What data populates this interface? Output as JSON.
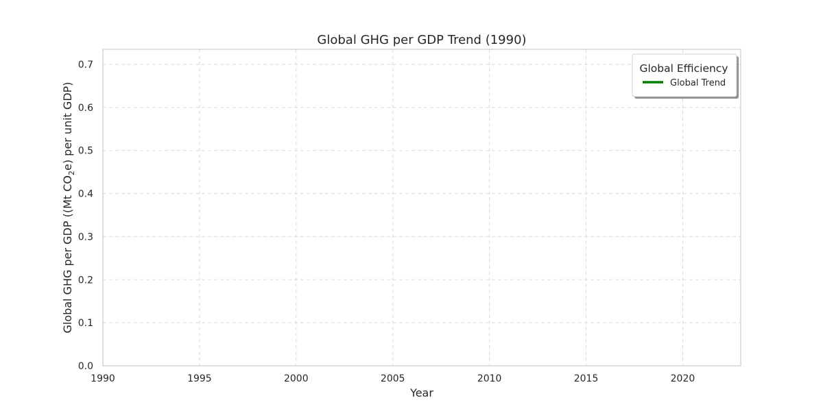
{
  "chart_data": {
    "type": "line",
    "title": "Global GHG per GDP Trend (1990)",
    "xlabel": "Year",
    "ylabel_parts": {
      "before": "Global GHG per GDP ((Mt CO",
      "subscript": "2",
      "after": "e) per unit GDP)"
    },
    "xlim": [
      1990,
      2023
    ],
    "ylim": [
      0,
      0.735
    ],
    "xticks": [
      1990,
      1995,
      2000,
      2005,
      2010,
      2015,
      2020
    ],
    "xtick_labels": [
      "1990",
      "1995",
      "2000",
      "2005",
      "2010",
      "2015",
      "2020"
    ],
    "yticks": [
      0,
      0.1,
      0.2,
      0.3,
      0.4,
      0.5,
      0.6,
      0.7
    ],
    "ytick_labels": [
      "0.0",
      "0.1",
      "0.2",
      "0.3",
      "0.4",
      "0.5",
      "0.6",
      "0.7"
    ],
    "grid": true,
    "legend": {
      "placement": "top-right",
      "title": "Global Efficiency",
      "entries": [
        {
          "name": "Global Trend",
          "color": "#008000"
        }
      ]
    },
    "series": [
      {
        "name": "Global Trend",
        "color": "#008000",
        "x": [],
        "y": []
      }
    ]
  }
}
